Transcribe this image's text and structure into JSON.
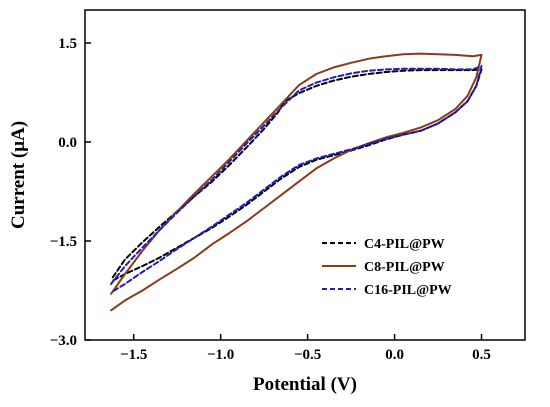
{
  "chart_data": {
    "type": "line",
    "title": "",
    "xlabel": "Potential (V)",
    "ylabel": "Current (μA)",
    "xlim": [
      -1.78,
      0.75
    ],
    "ylim": [
      -3.0,
      2.0
    ],
    "x_ticks": [
      -1.5,
      -1.0,
      -0.5,
      0.0,
      0.5
    ],
    "x_tick_labels": [
      "−1.5",
      "−1.0",
      "−0.5",
      "0.0",
      "0.5"
    ],
    "y_ticks": [
      -3.0,
      -1.5,
      0.0,
      1.5
    ],
    "y_tick_labels": [
      "−3.0",
      "−1.5",
      "0.0",
      "1.5"
    ],
    "grid": false,
    "legend_position": "lower-right",
    "series": [
      {
        "name": "C4-PIL@PW",
        "color": "#000000",
        "dash": "dashed",
        "x": [
          -1.62,
          -1.55,
          -1.45,
          -1.35,
          -1.25,
          -1.15,
          -1.05,
          -0.95,
          -0.85,
          -0.75,
          -0.67,
          -0.63,
          -0.55,
          -0.45,
          -0.35,
          -0.25,
          -0.15,
          -0.05,
          0.05,
          0.15,
          0.25,
          0.35,
          0.45,
          0.5,
          0.47,
          0.42,
          0.35,
          0.25,
          0.15,
          0.05,
          -0.05,
          -0.15,
          -0.25,
          -0.35,
          -0.45,
          -0.55,
          -0.65,
          -0.75,
          -0.85,
          -0.95,
          -1.05,
          -1.15,
          -1.25,
          -1.35,
          -1.45,
          -1.55,
          -1.62
        ],
        "y": [
          -2.05,
          -1.78,
          -1.52,
          -1.28,
          -1.05,
          -0.82,
          -0.6,
          -0.35,
          -0.08,
          0.2,
          0.45,
          0.62,
          0.74,
          0.85,
          0.93,
          0.99,
          1.03,
          1.06,
          1.08,
          1.09,
          1.09,
          1.09,
          1.09,
          1.1,
          0.85,
          0.62,
          0.45,
          0.28,
          0.17,
          0.11,
          0.04,
          -0.05,
          -0.13,
          -0.2,
          -0.27,
          -0.38,
          -0.55,
          -0.75,
          -0.95,
          -1.13,
          -1.3,
          -1.45,
          -1.6,
          -1.75,
          -1.88,
          -2.0,
          -2.1
        ]
      },
      {
        "name": "C8-PIL@PW",
        "color": "#8B3A1A",
        "dash": "solid",
        "x": [
          -1.63,
          -1.55,
          -1.45,
          -1.35,
          -1.25,
          -1.15,
          -1.05,
          -0.95,
          -0.85,
          -0.75,
          -0.66,
          -0.55,
          -0.45,
          -0.35,
          -0.25,
          -0.15,
          -0.05,
          0.05,
          0.15,
          0.25,
          0.35,
          0.45,
          0.5,
          0.47,
          0.42,
          0.35,
          0.25,
          0.15,
          0.05,
          -0.05,
          -0.15,
          -0.25,
          -0.35,
          -0.45,
          -0.55,
          -0.65,
          -0.75,
          -0.85,
          -0.95,
          -1.05,
          -1.15,
          -1.25,
          -1.35,
          -1.45,
          -1.55,
          -1.63
        ],
        "y": [
          -2.3,
          -2.0,
          -1.65,
          -1.33,
          -1.05,
          -0.78,
          -0.52,
          -0.26,
          0.02,
          0.3,
          0.55,
          0.86,
          1.03,
          1.13,
          1.2,
          1.26,
          1.3,
          1.33,
          1.34,
          1.33,
          1.32,
          1.3,
          1.32,
          0.98,
          0.7,
          0.5,
          0.33,
          0.22,
          0.14,
          0.07,
          -0.02,
          -0.12,
          -0.25,
          -0.4,
          -0.6,
          -0.8,
          -1.0,
          -1.2,
          -1.38,
          -1.55,
          -1.75,
          -1.92,
          -2.08,
          -2.25,
          -2.4,
          -2.55
        ]
      },
      {
        "name": "C16-PIL@PW",
        "color": "#1F1FB4",
        "dash": "dashed",
        "x": [
          -1.63,
          -1.55,
          -1.45,
          -1.35,
          -1.25,
          -1.15,
          -1.05,
          -0.95,
          -0.85,
          -0.75,
          -0.66,
          -0.55,
          -0.45,
          -0.35,
          -0.25,
          -0.15,
          -0.05,
          0.05,
          0.15,
          0.25,
          0.35,
          0.45,
          0.5,
          0.47,
          0.42,
          0.35,
          0.25,
          0.15,
          0.05,
          -0.05,
          -0.15,
          -0.25,
          -0.35,
          -0.45,
          -0.55,
          -0.65,
          -0.75,
          -0.85,
          -0.95,
          -1.05,
          -1.15,
          -1.25,
          -1.35,
          -1.45,
          -1.55,
          -1.63
        ],
        "y": [
          -2.15,
          -1.88,
          -1.6,
          -1.33,
          -1.07,
          -0.82,
          -0.57,
          -0.3,
          -0.02,
          0.25,
          0.5,
          0.78,
          0.9,
          0.98,
          1.04,
          1.08,
          1.1,
          1.11,
          1.11,
          1.11,
          1.1,
          1.1,
          1.15,
          0.85,
          0.62,
          0.45,
          0.28,
          0.17,
          0.11,
          0.05,
          -0.03,
          -0.11,
          -0.18,
          -0.25,
          -0.35,
          -0.52,
          -0.72,
          -0.92,
          -1.1,
          -1.28,
          -1.45,
          -1.62,
          -1.8,
          -1.97,
          -2.15,
          -2.28
        ]
      }
    ]
  }
}
